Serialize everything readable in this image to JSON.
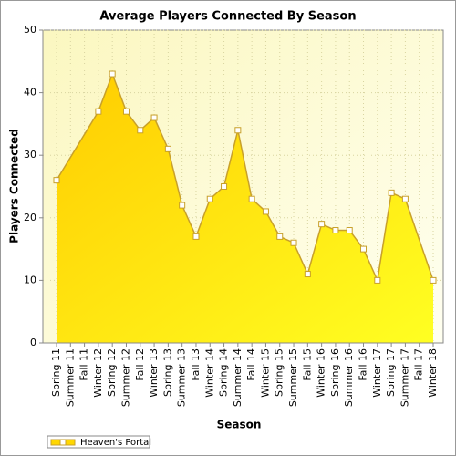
{
  "chart_data": {
    "type": "area",
    "title": "Average Players Connected By Season",
    "x_label": "Season",
    "y_label": "Players Connected",
    "categories": [
      "Spring 11",
      "Summer 11",
      "Fall 11",
      "Winter 12",
      "Spring 12",
      "Summer 12",
      "Fall 12",
      "Winter 13",
      "Spring 13",
      "Summer 13",
      "Fall 13",
      "Winter 14",
      "Spring 14",
      "Summer 14",
      "Fall 14",
      "Winter 15",
      "Spring 15",
      "Summer 15",
      "Fall 15",
      "Winter 16",
      "Spring 16",
      "Summer 16",
      "Fall 16",
      "Winter 17",
      "Spring 17",
      "Summer 17",
      "Fall 17",
      "Winter 18"
    ],
    "series": [
      {
        "name": "Heaven's Portal",
        "color": "#ffd700",
        "values": [
          26,
          null,
          null,
          37,
          43,
          37,
          34,
          36,
          31,
          22,
          17,
          23,
          25,
          34,
          23,
          21,
          17,
          16,
          11,
          19,
          18,
          18,
          15,
          10,
          24,
          23,
          null,
          10
        ]
      }
    ],
    "span_gaps": true,
    "ylim": [
      0,
      50
    ],
    "yticks": [
      0,
      10,
      20,
      30,
      40,
      50
    ],
    "grid": true,
    "legend": "bottom-left"
  }
}
